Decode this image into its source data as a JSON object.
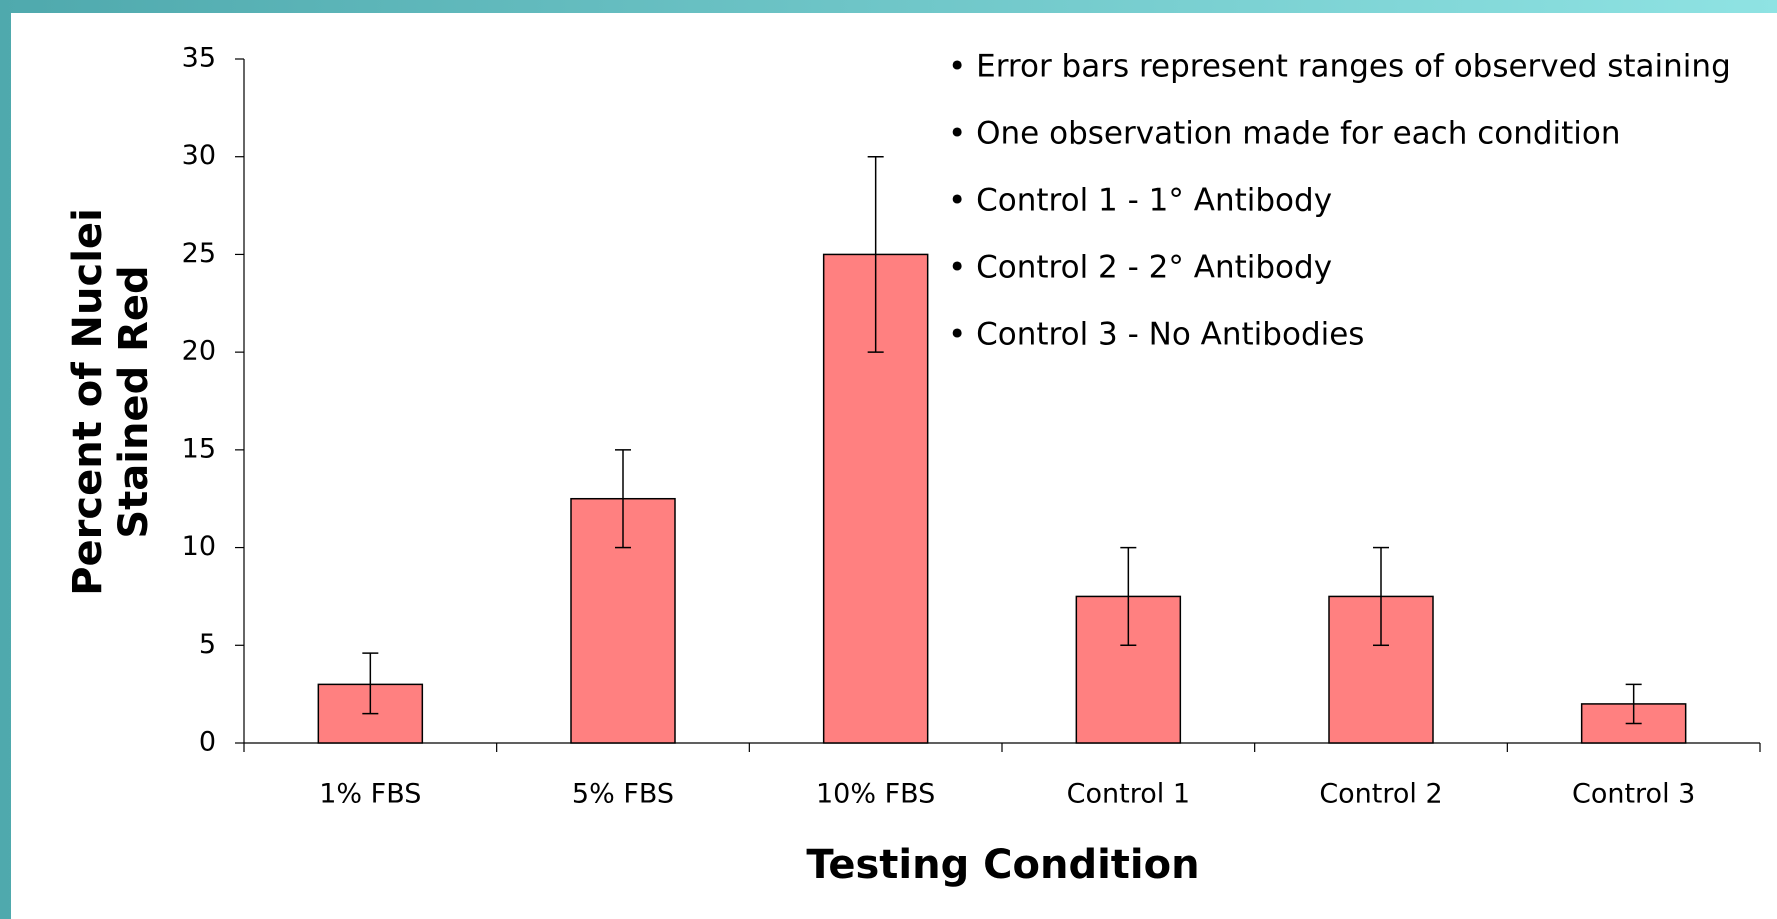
{
  "chart_data": {
    "type": "bar",
    "categories": [
      "1% FBS",
      "5% FBS",
      "10% FBS",
      "Control 1",
      "Control 2",
      "Control 3"
    ],
    "values": [
      3,
      12.5,
      25,
      7.5,
      7.5,
      2
    ],
    "error_low": [
      1.5,
      10,
      20,
      5,
      5,
      1
    ],
    "error_high": [
      4.6,
      15,
      30,
      10,
      10,
      3
    ],
    "color": "#ff8080",
    "ylim": [
      0,
      35
    ],
    "yticks": [
      0,
      5,
      10,
      15,
      20,
      25,
      30,
      35
    ],
    "xlabel": "Testing Condition",
    "ylabel": [
      "Percent of Nuclei",
      "Stained Red"
    ],
    "annotations": [
      "• Error bars represent ranges of observed staining",
      "• One observation made for each condition",
      "• Control 1 - 1° Antibody",
      "• Control 2 - 2° Antibody",
      "• Control 3 - No Antibodies"
    ],
    "grid": false
  }
}
